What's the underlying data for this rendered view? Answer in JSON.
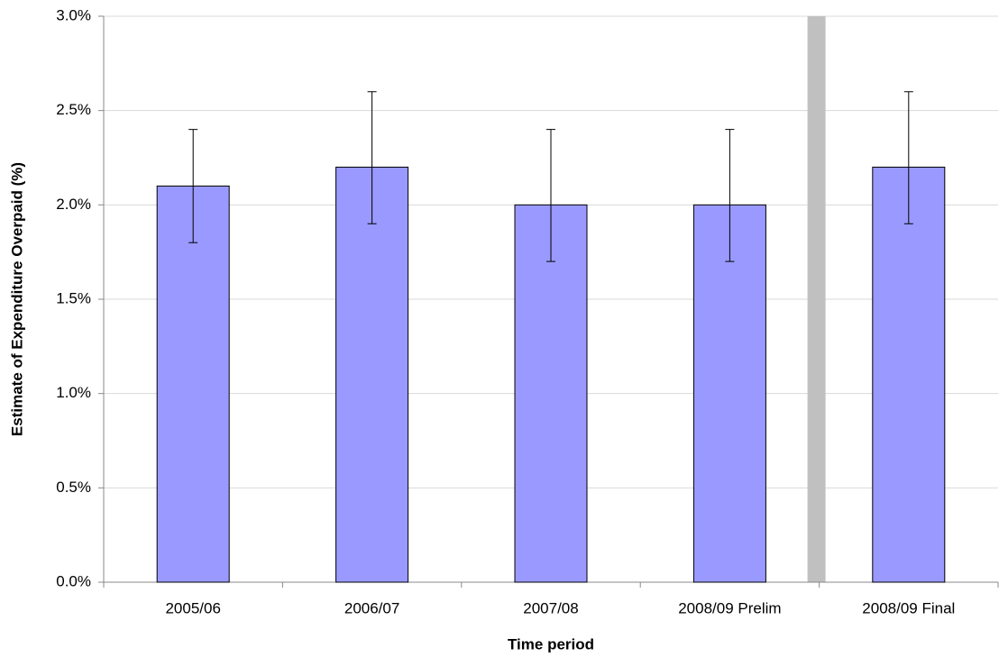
{
  "chart_data": {
    "type": "bar",
    "x_label": "Time period",
    "y_label": "Estimate of Expenditure Overpaid (%)",
    "categories": [
      "2005/06",
      "2006/07",
      "2007/08",
      "2008/09 Prelim",
      "2008/09 Final"
    ],
    "values": [
      2.1,
      2.2,
      2.0,
      2.0,
      2.2
    ],
    "ci_lower": [
      1.8,
      1.9,
      1.7,
      1.7,
      1.9
    ],
    "ci_upper": [
      2.4,
      2.6,
      2.4,
      2.4,
      2.6
    ],
    "color": "#9999ff",
    "ylim": [
      0,
      3
    ],
    "yticks": [
      {
        "value": 0,
        "label": "0.0%"
      },
      {
        "value": 0.5,
        "label": "0.5%"
      },
      {
        "value": 1,
        "label": "1.0%"
      },
      {
        "value": 1.5,
        "label": "1.5%"
      },
      {
        "value": 2,
        "label": "2.0%"
      },
      {
        "value": 2.5,
        "label": "2.5%"
      },
      {
        "value": 3,
        "label": "3.0%"
      }
    ],
    "grid": true
  }
}
